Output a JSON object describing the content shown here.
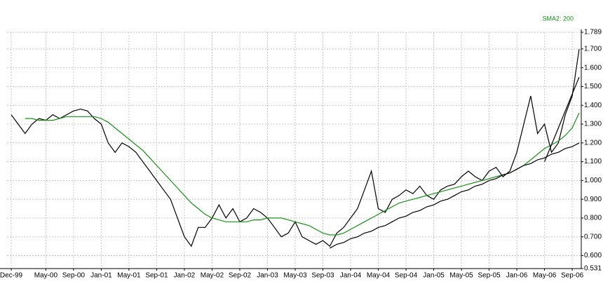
{
  "chart_data": {
    "type": "line",
    "categories": [
      "Dec-99",
      null,
      null,
      null,
      null,
      "May-00",
      null,
      null,
      null,
      "Sep-00",
      null,
      null,
      null,
      "Jan-01",
      null,
      null,
      null,
      "May-01",
      null,
      null,
      null,
      "Sep-01",
      null,
      null,
      null,
      "Jan-02",
      null,
      null,
      null,
      "May-02",
      null,
      null,
      null,
      "Sep-02",
      null,
      null,
      null,
      "Jan-03",
      null,
      null,
      null,
      "May-03",
      null,
      null,
      null,
      "Sep-03",
      null,
      null,
      null,
      "Jan-04",
      null,
      null,
      null,
      "May-04",
      null,
      null,
      null,
      "Sep-04",
      null,
      null,
      null,
      "Jan-05",
      null,
      null,
      null,
      "May-05",
      null,
      null,
      null,
      "Sep-05",
      null,
      null,
      null,
      "Jan-06",
      null,
      null,
      null,
      "May-06",
      null,
      null,
      null,
      "Sep-06",
      null
    ],
    "series": [
      {
        "color": "#000000",
        "values": [
          1.35,
          1.3,
          1.25,
          1.3,
          1.33,
          1.32,
          1.35,
          1.33,
          1.35,
          1.37,
          1.38,
          1.37,
          1.33,
          1.3,
          1.2,
          1.15,
          1.2,
          1.18,
          1.15,
          1.1,
          1.05,
          1.0,
          0.95,
          0.9,
          0.8,
          0.7,
          0.65,
          0.75,
          0.75,
          0.8,
          0.87,
          0.8,
          0.85,
          0.78,
          0.8,
          0.85,
          0.83,
          0.8,
          0.75,
          0.7,
          0.72,
          0.78,
          0.7,
          0.68,
          0.66,
          0.68,
          0.65,
          0.72,
          0.75,
          0.8,
          0.85,
          0.95,
          1.05,
          0.85,
          0.83,
          0.9,
          0.92,
          0.95,
          0.93,
          0.97,
          0.92,
          0.9,
          0.95,
          0.97,
          0.98,
          1.02,
          1.05,
          1.02,
          1.0,
          1.05,
          1.07,
          1.02,
          1.05,
          1.15,
          1.3,
          1.45,
          1.25,
          1.3,
          1.15,
          1.2,
          1.35,
          1.45,
          1.7
        ]
      },
      {
        "name": "SMA2: 200",
        "color": "#1a8f1a",
        "values": [
          null,
          null,
          1.33,
          1.33,
          1.32,
          1.32,
          1.32,
          1.33,
          1.34,
          1.34,
          1.34,
          1.34,
          1.34,
          1.33,
          1.31,
          1.28,
          1.25,
          1.22,
          1.19,
          1.16,
          1.12,
          1.08,
          1.04,
          1.0,
          0.96,
          0.92,
          0.88,
          0.85,
          0.82,
          0.8,
          0.79,
          0.78,
          0.78,
          0.78,
          0.78,
          0.79,
          0.79,
          0.8,
          0.8,
          0.8,
          0.79,
          0.78,
          0.77,
          0.76,
          0.74,
          0.72,
          0.71,
          0.71,
          0.72,
          0.74,
          0.76,
          0.78,
          0.8,
          0.82,
          0.84,
          0.86,
          0.88,
          0.89,
          0.9,
          0.91,
          0.92,
          0.93,
          0.94,
          0.95,
          0.96,
          0.97,
          0.98,
          0.99,
          1.0,
          1.01,
          1.02,
          1.03,
          1.04,
          1.06,
          1.08,
          1.11,
          1.14,
          1.17,
          1.19,
          1.21,
          1.24,
          1.28,
          1.36
        ]
      },
      {
        "color": "#000000",
        "values": [
          null,
          null,
          null,
          null,
          null,
          null,
          null,
          null,
          null,
          null,
          null,
          null,
          null,
          null,
          null,
          null,
          null,
          null,
          null,
          null,
          null,
          null,
          null,
          null,
          null,
          null,
          null,
          null,
          null,
          null,
          null,
          null,
          null,
          null,
          null,
          null,
          null,
          null,
          null,
          null,
          null,
          null,
          null,
          null,
          null,
          null,
          0.64,
          0.66,
          0.67,
          0.69,
          0.7,
          0.72,
          0.73,
          0.75,
          0.76,
          0.78,
          0.8,
          0.81,
          0.83,
          0.84,
          0.86,
          0.87,
          0.89,
          0.9,
          0.92,
          0.94,
          0.95,
          0.97,
          0.98,
          1.0,
          1.01,
          1.03,
          1.04,
          1.06,
          1.08,
          1.09,
          1.11,
          1.12,
          1.14,
          1.15,
          1.17,
          1.18,
          1.2
        ]
      },
      {
        "color": "#000000",
        "values": [
          null,
          null,
          null,
          null,
          null,
          null,
          null,
          null,
          null,
          null,
          null,
          null,
          null,
          null,
          null,
          null,
          null,
          null,
          null,
          null,
          null,
          null,
          null,
          null,
          null,
          null,
          null,
          null,
          null,
          null,
          null,
          null,
          null,
          null,
          null,
          null,
          null,
          null,
          null,
          null,
          null,
          null,
          null,
          null,
          null,
          null,
          null,
          null,
          null,
          null,
          null,
          null,
          null,
          null,
          null,
          null,
          null,
          null,
          null,
          null,
          null,
          null,
          null,
          null,
          null,
          null,
          null,
          null,
          null,
          null,
          null,
          null,
          null,
          null,
          null,
          null,
          null,
          1.1,
          1.19,
          1.28,
          1.37,
          1.46,
          1.55
        ]
      }
    ],
    "ylim": [
      0.531,
      1.789
    ],
    "yticks": [
      1.789,
      {
        "value": 1.7,
        "label": "1.700"
      },
      {
        "value": 1.6,
        "label": "1.600"
      },
      {
        "value": 1.5,
        "label": "1.500"
      },
      {
        "value": 1.4,
        "label": "1.400"
      },
      {
        "value": 1.3,
        "label": "1.300"
      },
      {
        "value": 1.2,
        "label": "1.200"
      },
      {
        "value": 1.1,
        "label": "1.100"
      },
      {
        "value": 1.0,
        "label": "1.000"
      },
      {
        "value": 0.9,
        "label": "0.900"
      },
      {
        "value": 0.8,
        "label": "0.800"
      },
      {
        "value": 0.7,
        "label": "0.700"
      },
      {
        "value": 0.6,
        "label": "0.600"
      },
      0.531
    ],
    "grid": true,
    "legend": "top-right"
  }
}
